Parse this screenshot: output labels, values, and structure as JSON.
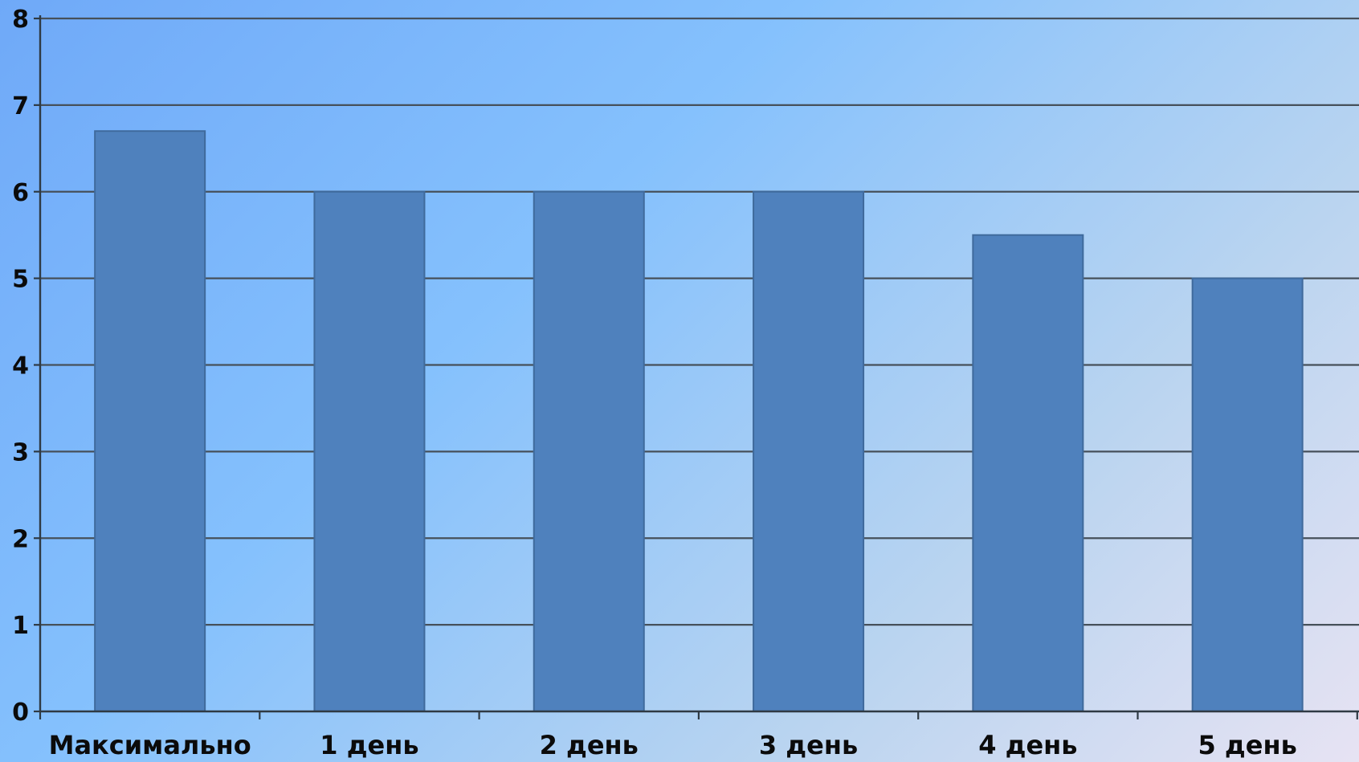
{
  "chart_data": {
    "type": "bar",
    "title": "",
    "xlabel": "",
    "ylabel": "",
    "categories": [
      "Максимально",
      "1 день",
      "2 день",
      "3 день",
      "4 день",
      "5 день"
    ],
    "values": [
      6.7,
      6,
      6,
      6,
      5.5,
      5
    ],
    "ylim": [
      0,
      8
    ],
    "yticks": [
      "0",
      "1",
      "2",
      "3",
      "4",
      "5",
      "6",
      "7",
      "8"
    ],
    "grid": true,
    "legend": "none",
    "colors": {
      "bar": "#4f81bd",
      "bar_edge": "#3f6a9c",
      "grid": "#46505a",
      "axis": "#2f3a44"
    }
  }
}
